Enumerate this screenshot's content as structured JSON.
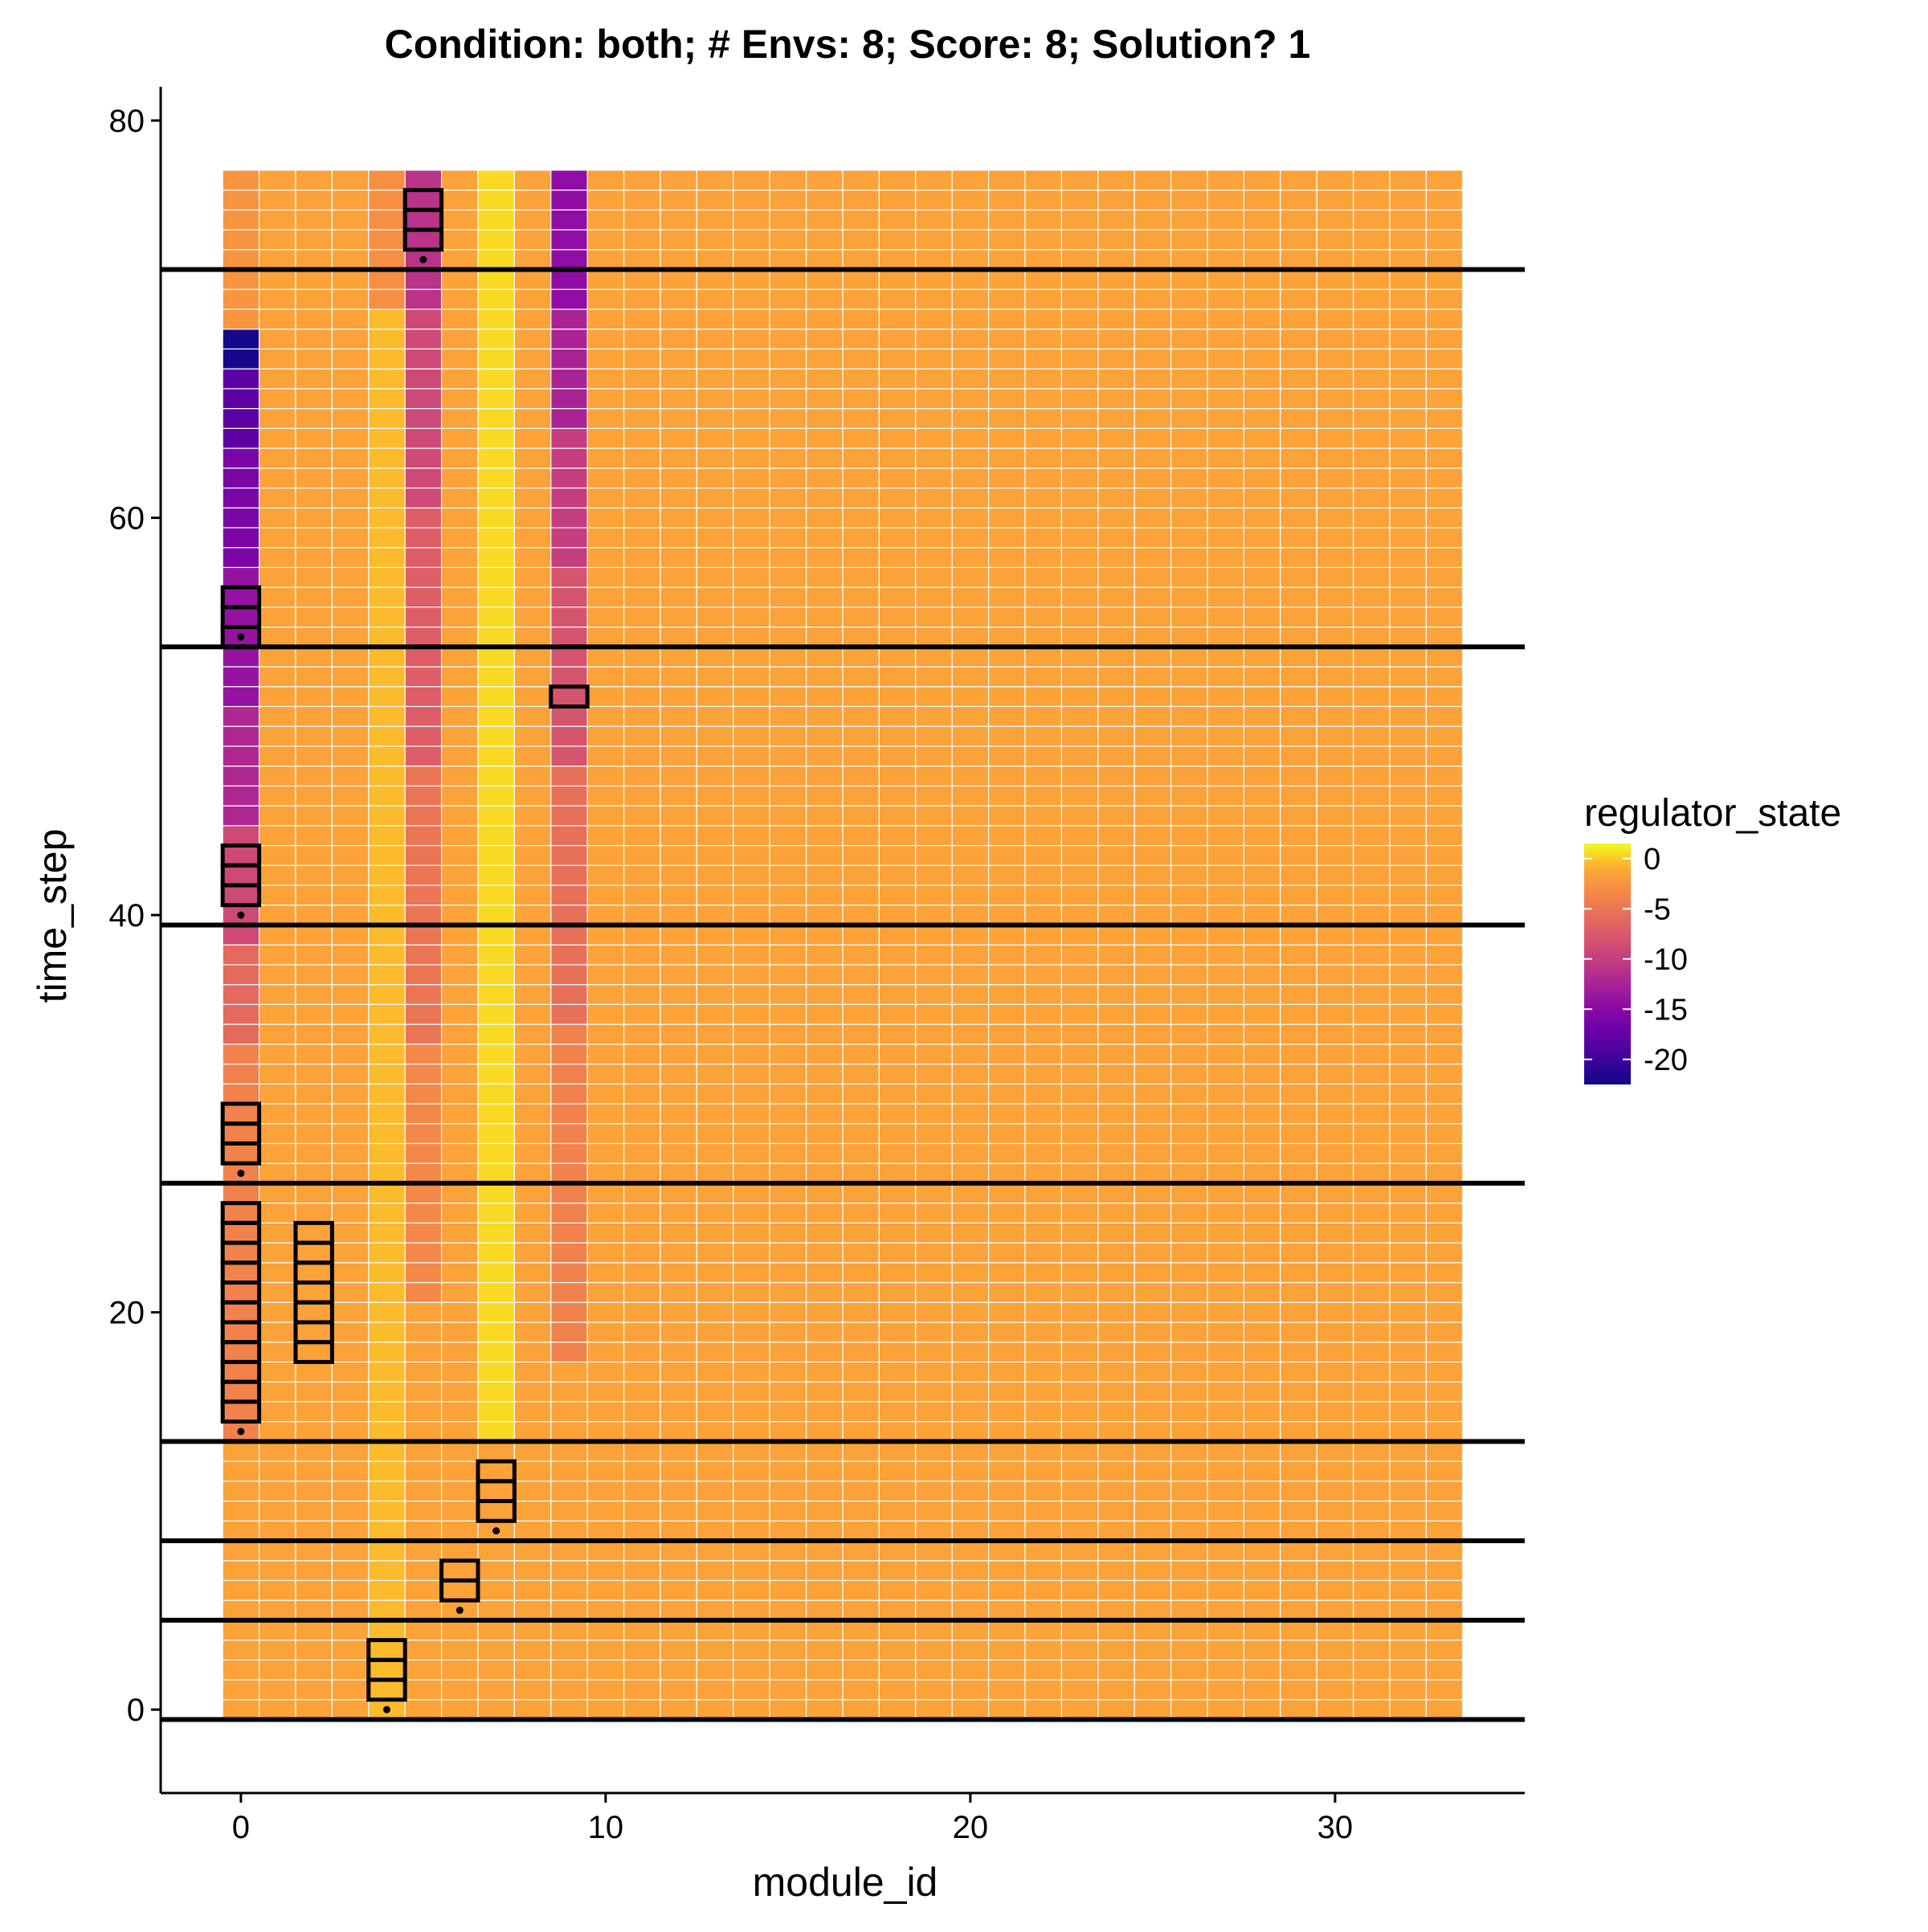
{
  "chart_data": {
    "type": "heatmap",
    "title": "Condition: both; # Envs: 8; Score: 8; Solution? 1",
    "xlabel": "module_id",
    "ylabel": "time_step",
    "xlim": [
      -2.2,
      35.2
    ],
    "ylim": [
      -4.2,
      81.7
    ],
    "x_ticks": [
      "0",
      "10",
      "20",
      "30"
    ],
    "x_tick_values": [
      0,
      10,
      20,
      30
    ],
    "y_ticks": [
      "0",
      "20",
      "40",
      "60",
      "80"
    ],
    "y_tick_values": [
      0,
      20,
      40,
      60,
      80
    ],
    "grid": false,
    "modules": 34,
    "time_steps": 78,
    "default_state": -1.5,
    "state_columns": [
      {
        "module": 0,
        "segments": [
          {
            "t_from": 0,
            "t_to": 13,
            "state": -1.5
          },
          {
            "t_from": 14,
            "t_to": 26,
            "state": -4.0
          },
          {
            "t_from": 27,
            "t_to": 33,
            "state": -4.0
          },
          {
            "t_from": 34,
            "t_to": 38,
            "state": -6.0
          },
          {
            "t_from": 39,
            "t_to": 44,
            "state": -9.0
          },
          {
            "t_from": 45,
            "t_to": 50,
            "state": -12.0
          },
          {
            "t_from": 51,
            "t_to": 57,
            "state": -14.0
          },
          {
            "t_from": 58,
            "t_to": 63,
            "state": -16.0
          },
          {
            "t_from": 64,
            "t_to": 67,
            "state": -18.0
          },
          {
            "t_from": 68,
            "t_to": 69,
            "state": -22.0
          },
          {
            "t_from": 70,
            "t_to": 77,
            "state": -2.5
          }
        ]
      },
      {
        "module": 4,
        "segments": [
          {
            "t_from": 0,
            "t_to": 70,
            "state": -0.5
          },
          {
            "t_from": 71,
            "t_to": 77,
            "state": -3.0
          }
        ]
      },
      {
        "module": 5,
        "segments": [
          {
            "t_from": 0,
            "t_to": 20,
            "state": -1.5
          },
          {
            "t_from": 21,
            "t_to": 33,
            "state": -3.5
          },
          {
            "t_from": 34,
            "t_to": 47,
            "state": -5.0
          },
          {
            "t_from": 48,
            "t_to": 60,
            "state": -7.0
          },
          {
            "t_from": 61,
            "t_to": 70,
            "state": -9.0
          },
          {
            "t_from": 71,
            "t_to": 77,
            "state": -11.0
          }
        ]
      },
      {
        "module": 7,
        "segments": [
          {
            "t_from": 0,
            "t_to": 13,
            "state": -1.5
          },
          {
            "t_from": 14,
            "t_to": 77,
            "state": 0.5
          }
        ]
      },
      {
        "module": 9,
        "segments": [
          {
            "t_from": 0,
            "t_to": 17,
            "state": -1.5
          },
          {
            "t_from": 18,
            "t_to": 34,
            "state": -4.0
          },
          {
            "t_from": 35,
            "t_to": 47,
            "state": -5.5
          },
          {
            "t_from": 48,
            "t_to": 57,
            "state": -8.0
          },
          {
            "t_from": 58,
            "t_to": 64,
            "state": -10.0
          },
          {
            "t_from": 65,
            "t_to": 70,
            "state": -12.5
          },
          {
            "t_from": 71,
            "t_to": 77,
            "state": -14.5
          }
        ]
      }
    ],
    "env_boundaries": [
      -0.5,
      4.5,
      8.5,
      13.5,
      26.5,
      39.5,
      53.5,
      72.5
    ],
    "highlight_boxes": [
      {
        "module": 4,
        "t_from": 1,
        "t_to": 3
      },
      {
        "module": 6,
        "t_from": 6,
        "t_to": 7
      },
      {
        "module": 7,
        "t_from": 10,
        "t_to": 12
      },
      {
        "module": 0,
        "t_from": 15,
        "t_to": 25
      },
      {
        "module": 2,
        "t_from": 18,
        "t_to": 24
      },
      {
        "module": 0,
        "t_from": 28,
        "t_to": 30
      },
      {
        "module": 0,
        "t_from": 41,
        "t_to": 43
      },
      {
        "module": 9,
        "t_from": 51,
        "t_to": 51
      },
      {
        "module": 0,
        "t_from": 54,
        "t_to": 56
      },
      {
        "module": 5,
        "t_from": 74,
        "t_to": 76
      }
    ],
    "dots": [
      {
        "module": 4,
        "time": 0
      },
      {
        "module": 6,
        "time": 5
      },
      {
        "module": 7,
        "time": 9
      },
      {
        "module": 0,
        "time": 14
      },
      {
        "module": 0,
        "time": 27
      },
      {
        "module": 0,
        "time": 40
      },
      {
        "module": 0,
        "time": 54
      },
      {
        "module": 5,
        "time": 73
      }
    ],
    "legend": {
      "title": "regulator_state",
      "placement": "right",
      "range": [
        -22.5,
        1.5
      ],
      "labels": [
        "0",
        "-5",
        "-10",
        "-15",
        "-20"
      ],
      "values": [
        0,
        -5,
        -10,
        -15,
        -20
      ]
    },
    "colorscale": [
      {
        "stop": 0.0,
        "color": "#0d0887"
      },
      {
        "stop": 0.111,
        "color": "#41049d"
      },
      {
        "stop": 0.222,
        "color": "#6a00a8"
      },
      {
        "stop": 0.333,
        "color": "#8f0da4"
      },
      {
        "stop": 0.444,
        "color": "#b12a90"
      },
      {
        "stop": 0.556,
        "color": "#cc4778"
      },
      {
        "stop": 0.667,
        "color": "#e16462"
      },
      {
        "stop": 0.778,
        "color": "#f2844b"
      },
      {
        "stop": 0.889,
        "color": "#fca636"
      },
      {
        "stop": 0.944,
        "color": "#fcce25"
      },
      {
        "stop": 1.0,
        "color": "#f0f921"
      }
    ]
  }
}
